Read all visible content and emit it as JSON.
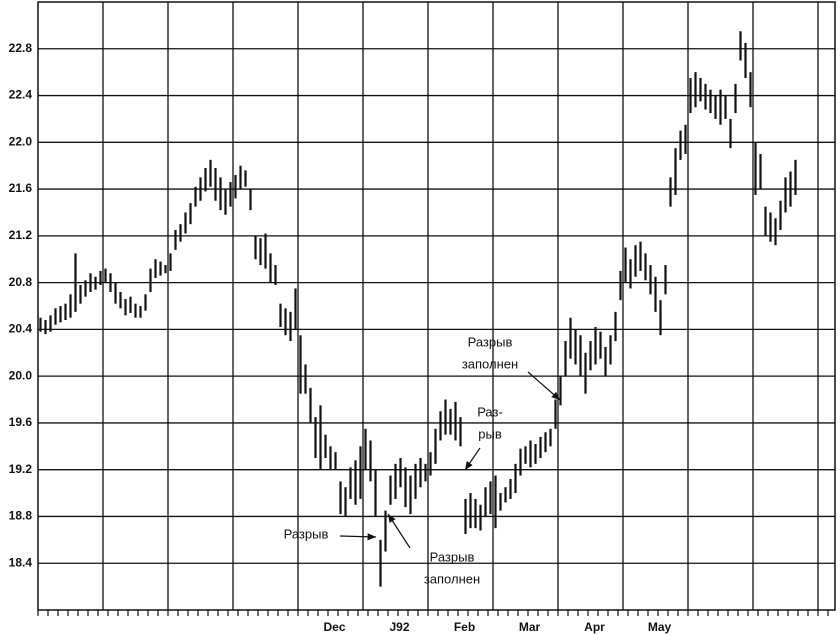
{
  "chart_data": {
    "type": "range-bar",
    "categories": [
      null,
      null,
      null,
      null,
      null,
      null,
      null,
      null,
      null,
      null,
      null,
      null,
      null,
      null,
      null,
      null,
      null,
      null,
      null,
      null,
      null,
      null,
      null,
      null,
      null,
      null,
      null,
      null,
      null,
      null,
      null,
      null,
      null,
      null,
      null,
      null,
      null,
      null,
      null,
      null,
      null,
      null,
      null,
      null,
      null,
      null,
      null,
      null,
      null,
      null,
      null,
      null,
      null,
      null,
      null,
      null,
      null,
      null,
      "Dec",
      null,
      null,
      null,
      null,
      null,
      null,
      null,
      null,
      null,
      null,
      null,
      null,
      "J92",
      null,
      null,
      null,
      null,
      null,
      null,
      null,
      null,
      null,
      null,
      null,
      null,
      "Feb",
      null,
      null,
      null,
      null,
      null,
      null,
      null,
      null,
      null,
      null,
      null,
      null,
      "Mar",
      null,
      null,
      null,
      null,
      null,
      null,
      null,
      null,
      null,
      null,
      null,
      null,
      "Apr",
      null,
      null,
      null,
      null,
      null,
      null,
      null,
      null,
      null,
      null,
      null,
      null,
      "May",
      null,
      null,
      null,
      null,
      null,
      null,
      null,
      null,
      null,
      null,
      null,
      null,
      null,
      null,
      null,
      null,
      null,
      null,
      null,
      null,
      null,
      null,
      null,
      null,
      null,
      null,
      null,
      null
    ],
    "high": [
      20.5,
      20.48,
      20.52,
      20.58,
      20.6,
      20.62,
      20.7,
      21.05,
      20.78,
      20.82,
      20.88,
      20.85,
      20.9,
      20.92,
      20.88,
      20.8,
      20.72,
      20.66,
      20.68,
      20.62,
      20.6,
      20.7,
      20.92,
      21.0,
      20.98,
      20.95,
      21.05,
      21.25,
      21.3,
      21.4,
      21.48,
      21.62,
      21.7,
      21.78,
      21.85,
      21.78,
      21.7,
      21.6,
      21.66,
      21.72,
      21.8,
      21.76,
      21.6,
      21.2,
      21.18,
      21.22,
      21.05,
      20.95,
      20.62,
      20.58,
      20.55,
      20.75,
      20.35,
      20.1,
      19.9,
      19.65,
      19.75,
      19.5,
      19.4,
      19.35,
      19.1,
      19.05,
      19.22,
      19.28,
      19.4,
      19.55,
      19.45,
      19.2,
      18.6,
      18.85,
      19.15,
      19.25,
      19.3,
      19.22,
      19.15,
      19.25,
      19.3,
      19.25,
      19.35,
      19.55,
      19.7,
      19.8,
      19.72,
      19.78,
      19.65,
      18.95,
      19.0,
      18.95,
      18.9,
      19.05,
      19.1,
      19.15,
      19.0,
      19.05,
      19.12,
      19.25,
      19.38,
      19.4,
      19.45,
      19.42,
      19.48,
      19.52,
      19.55,
      19.8,
      20.0,
      20.3,
      20.5,
      20.4,
      20.35,
      20.2,
      20.3,
      20.42,
      20.38,
      20.25,
      20.35,
      20.55,
      20.9,
      21.1,
      21.0,
      21.12,
      21.15,
      21.05,
      20.95,
      20.85,
      20.65,
      20.95,
      21.7,
      21.95,
      22.1,
      22.15,
      22.55,
      22.6,
      22.55,
      22.5,
      22.45,
      22.4,
      22.45,
      22.4,
      22.2,
      22.5,
      22.95,
      22.85,
      22.6,
      22.0,
      21.9,
      21.45,
      21.4,
      21.35,
      21.5,
      21.7,
      21.75,
      21.85
    ],
    "low": [
      20.38,
      20.36,
      20.38,
      20.44,
      20.46,
      20.48,
      20.5,
      20.55,
      20.62,
      20.68,
      20.72,
      20.74,
      20.78,
      20.8,
      20.72,
      20.62,
      20.58,
      20.52,
      20.54,
      20.5,
      20.5,
      20.56,
      20.72,
      20.84,
      20.86,
      20.88,
      20.9,
      21.08,
      21.15,
      21.22,
      21.3,
      21.45,
      21.5,
      21.58,
      21.62,
      21.5,
      21.42,
      21.38,
      21.45,
      21.52,
      21.6,
      21.62,
      21.42,
      21.0,
      20.95,
      20.92,
      20.8,
      20.78,
      20.42,
      20.35,
      20.3,
      20.4,
      19.85,
      19.85,
      19.6,
      19.3,
      19.2,
      19.3,
      19.2,
      19.2,
      18.82,
      18.8,
      18.95,
      18.9,
      18.95,
      19.2,
      19.1,
      18.8,
      18.2,
      18.5,
      18.9,
      18.95,
      19.05,
      18.88,
      18.82,
      18.95,
      19.05,
      19.1,
      19.15,
      19.25,
      19.45,
      19.5,
      19.5,
      19.45,
      19.4,
      18.65,
      18.7,
      18.7,
      18.68,
      18.8,
      18.82,
      18.7,
      18.85,
      18.92,
      18.95,
      19.0,
      19.15,
      19.25,
      19.22,
      19.25,
      19.3,
      19.35,
      19.4,
      19.55,
      19.75,
      20.0,
      20.15,
      20.1,
      20.0,
      19.85,
      20.05,
      20.1,
      20.15,
      20.0,
      20.1,
      20.3,
      20.65,
      20.8,
      20.75,
      20.85,
      20.9,
      20.82,
      20.7,
      20.55,
      20.35,
      20.7,
      21.45,
      21.55,
      21.85,
      21.9,
      22.25,
      22.3,
      22.35,
      22.28,
      22.25,
      22.2,
      22.15,
      22.2,
      21.95,
      22.25,
      22.7,
      22.55,
      22.3,
      21.55,
      21.6,
      21.2,
      21.15,
      21.12,
      21.25,
      21.4,
      21.45,
      21.55
    ],
    "color": "#111111",
    "ylim": [
      18,
      23.2
    ],
    "yticks": [
      18.4,
      18.8,
      19.2,
      19.6,
      {
        "value": 20,
        "label": "20.0"
      },
      20.4,
      20.8,
      21.2,
      21.6,
      {
        "value": 22,
        "label": "22.0"
      },
      22.4,
      22.8
    ],
    "grid": true,
    "annotations": [
      {
        "lines": [
          "Разрыв",
          "заполнен"
        ]
      },
      {
        "lines": [
          "Раз-",
          "рыв"
        ]
      },
      {
        "lines": [
          "Разрыв"
        ]
      },
      {
        "lines": [
          "Разрыв",
          "заполнен"
        ]
      }
    ]
  }
}
